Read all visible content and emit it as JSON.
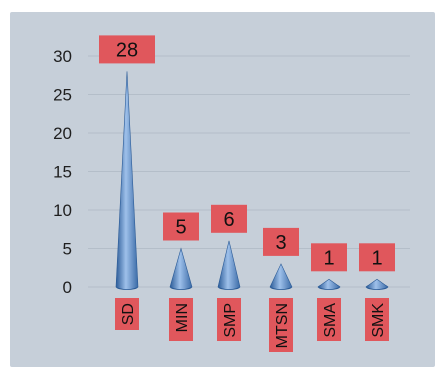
{
  "chart_data": {
    "type": "bar",
    "bar_shape": "cone",
    "categories": [
      "SD",
      "MIN",
      "SMP",
      "MTSN",
      "SMA",
      "SMK"
    ],
    "values": [
      28,
      5,
      6,
      3,
      1,
      1
    ],
    "data_labels": [
      "28",
      "5",
      "6",
      "3",
      "1",
      "1"
    ],
    "title": "",
    "xlabel": "",
    "ylabel": "",
    "ylim": [
      0,
      30
    ],
    "yticks": [
      "0",
      "5",
      "10",
      "15",
      "20",
      "25",
      "30"
    ],
    "grid": true,
    "legend": "none",
    "colors": {
      "bar": "#4f81bd",
      "bar_dark": "#2b5b97",
      "bar_light": "#9ec0ea",
      "label_box": "#e0575c",
      "plot_background": "#c6cfd9",
      "grid": "#b4bec9"
    }
  }
}
